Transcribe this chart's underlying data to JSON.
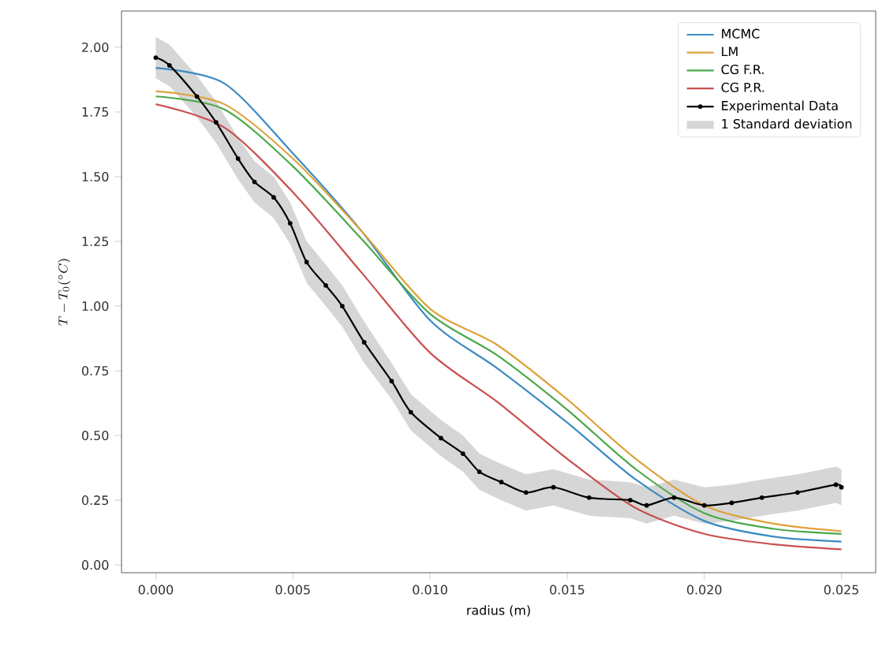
{
  "chart_data": {
    "type": "line",
    "xlabel": "radius (m)",
    "ylabel": "T - T_0(^\\circ C)",
    "xlim": [
      -0.00125,
      0.02625
    ],
    "ylim": [
      -0.03,
      2.14
    ],
    "xticks": [
      {
        "value": 0,
        "label": "0.000"
      },
      {
        "value": 0.005,
        "label": "0.005"
      },
      {
        "value": 0.01,
        "label": "0.010"
      },
      {
        "value": 0.015,
        "label": "0.015"
      },
      {
        "value": 0.02,
        "label": "0.020"
      },
      {
        "value": 0.025,
        "label": "0.025"
      }
    ],
    "yticks": [
      {
        "value": 0,
        "label": "0.00"
      },
      {
        "value": 0.25,
        "label": "0.25"
      },
      {
        "value": 0.5,
        "label": "0.50"
      },
      {
        "value": 0.75,
        "label": "0.75"
      },
      {
        "value": 1,
        "label": "1.00"
      },
      {
        "value": 1.25,
        "label": "1.25"
      },
      {
        "value": 1.5,
        "label": "1.50"
      },
      {
        "value": 1.75,
        "label": "1.75"
      },
      {
        "value": 2,
        "label": "2.00"
      }
    ],
    "legend": "top right",
    "grid": false,
    "annotations": [
      "1 Standard deviation"
    ],
    "x": [
      0,
      0.0025,
      0.005,
      0.0075,
      0.01,
      0.01245,
      0.015,
      0.0175,
      0.02,
      0.0225,
      0.025
    ],
    "series": [
      {
        "name": "MCMC",
        "color": "#3b8bc2",
        "values": [
          1.92,
          1.86,
          1.59,
          1.29,
          0.945,
          0.76,
          0.55,
          0.33,
          0.17,
          0.11,
          0.09
        ]
      },
      {
        "name": "LM",
        "color": "#dda23b",
        "values": [
          1.83,
          1.78,
          1.57,
          1.29,
          0.99,
          0.85,
          0.64,
          0.41,
          0.23,
          0.16,
          0.13
        ]
      },
      {
        "name": "CG F.R.",
        "color": "#4aa84a",
        "values": [
          1.81,
          1.76,
          1.54,
          1.26,
          0.97,
          0.81,
          0.6,
          0.37,
          0.2,
          0.14,
          0.12
        ]
      },
      {
        "name": "CG P.R.",
        "color": "#c94f4f",
        "values": [
          1.78,
          1.69,
          1.44,
          1.13,
          0.82,
          0.63,
          0.41,
          0.22,
          0.12,
          0.08,
          0.06
        ]
      },
      {
        "name": "Experimental Data",
        "marker": "circle",
        "color": "#000000",
        "x": [
          0,
          0.0005,
          0.0015,
          0.0022,
          0.003,
          0.0036,
          0.0043,
          0.0049,
          0.0055,
          0.0062,
          0.0068,
          0.0076,
          0.0086,
          0.0093,
          0.0104,
          0.0112,
          0.0118,
          0.0126,
          0.0135,
          0.0145,
          0.0158,
          0.0173,
          0.0179,
          0.0189,
          0.02,
          0.021,
          0.0221,
          0.0234,
          0.0248,
          0.025
        ],
        "values": [
          1.96,
          1.93,
          1.81,
          1.71,
          1.57,
          1.48,
          1.42,
          1.32,
          1.17,
          1.08,
          1.0,
          0.86,
          0.71,
          0.59,
          0.49,
          0.43,
          0.36,
          0.32,
          0.28,
          0.3,
          0.26,
          0.25,
          0.23,
          0.26,
          0.23,
          0.24,
          0.26,
          0.28,
          0.31,
          0.3
        ],
        "upper": [
          2.04,
          2.01,
          1.89,
          1.79,
          1.65,
          1.56,
          1.5,
          1.4,
          1.25,
          1.16,
          1.08,
          0.94,
          0.78,
          0.66,
          0.56,
          0.5,
          0.43,
          0.39,
          0.35,
          0.37,
          0.33,
          0.32,
          0.3,
          0.33,
          0.3,
          0.31,
          0.33,
          0.35,
          0.38,
          0.37
        ],
        "lower": [
          1.88,
          1.85,
          1.73,
          1.63,
          1.49,
          1.4,
          1.34,
          1.24,
          1.09,
          1.0,
          0.92,
          0.78,
          0.64,
          0.52,
          0.42,
          0.36,
          0.29,
          0.25,
          0.21,
          0.23,
          0.19,
          0.18,
          0.16,
          0.19,
          0.16,
          0.17,
          0.19,
          0.21,
          0.24,
          0.23
        ]
      }
    ]
  }
}
